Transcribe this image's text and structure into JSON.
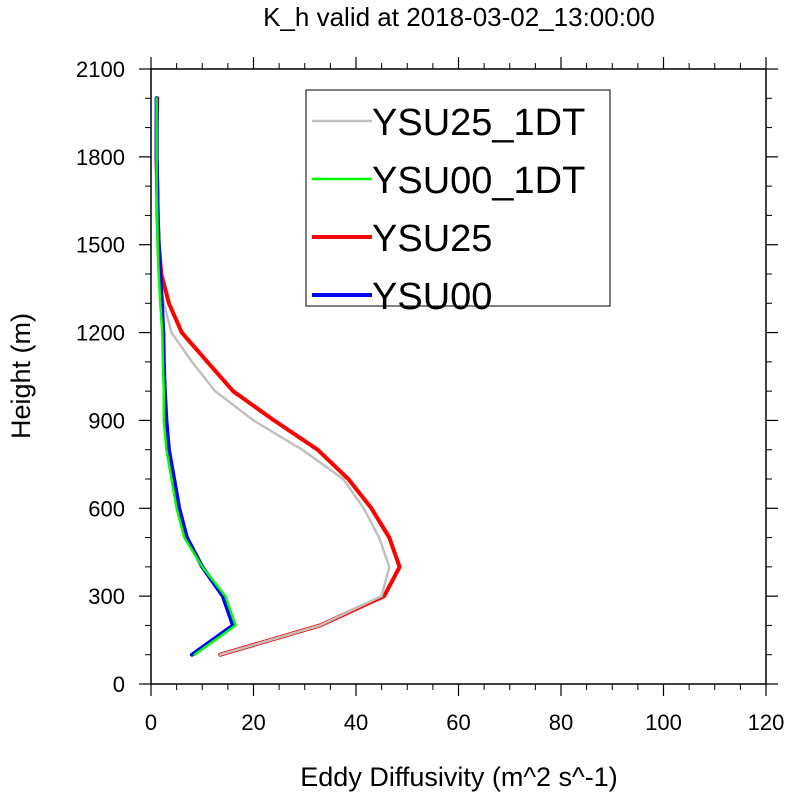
{
  "chart_data": {
    "type": "line",
    "title": "K_h valid at 2018-03-02_13:00:00",
    "xlabel": "Eddy Diffusivity (m^2 s^-1)",
    "ylabel": "Height (m)",
    "xlim": [
      0,
      120
    ],
    "ylim": [
      0,
      2100
    ],
    "xticks": [
      0,
      20,
      40,
      60,
      80,
      100,
      120
    ],
    "yticks": [
      0,
      300,
      600,
      900,
      1200,
      1500,
      1800,
      2100
    ],
    "grid": false,
    "legend_position": "top-right",
    "series": [
      {
        "name": "YSU25_1DT",
        "color": "#c0c0c0",
        "points": [
          [
            13.5,
            100
          ],
          [
            33,
            200
          ],
          [
            45,
            300
          ],
          [
            46.5,
            400
          ],
          [
            44.5,
            500
          ],
          [
            41.5,
            600
          ],
          [
            37.5,
            700
          ],
          [
            29.5,
            800
          ],
          [
            20,
            900
          ],
          [
            12.5,
            1000
          ],
          [
            8,
            1100
          ],
          [
            4,
            1200
          ],
          [
            2.5,
            1300
          ],
          [
            1.5,
            1400
          ],
          [
            1.2,
            1500
          ],
          [
            1.1,
            1600
          ],
          [
            1.1,
            1700
          ],
          [
            1.1,
            1800
          ],
          [
            1.1,
            1900
          ],
          [
            1.1,
            2000
          ]
        ]
      },
      {
        "name": "YSU00_1DT",
        "color": "#00ff00",
        "points": [
          [
            8.5,
            100
          ],
          [
            16.5,
            200
          ],
          [
            14.5,
            300
          ],
          [
            10,
            400
          ],
          [
            6.5,
            500
          ],
          [
            5,
            600
          ],
          [
            4,
            700
          ],
          [
            3,
            800
          ],
          [
            2.5,
            900
          ],
          [
            2.5,
            1000
          ],
          [
            2.3,
            1100
          ],
          [
            2.2,
            1200
          ],
          [
            1.8,
            1300
          ],
          [
            1.5,
            1400
          ],
          [
            1.3,
            1500
          ],
          [
            1.2,
            1600
          ],
          [
            1.1,
            1700
          ],
          [
            1.1,
            1800
          ],
          [
            1.1,
            1900
          ],
          [
            1.1,
            2000
          ]
        ]
      },
      {
        "name": "YSU25",
        "color": "#ff0000",
        "points": [
          [
            13.5,
            100
          ],
          [
            33,
            200
          ],
          [
            45.5,
            300
          ],
          [
            48.5,
            400
          ],
          [
            46.5,
            500
          ],
          [
            43,
            600
          ],
          [
            38.5,
            700
          ],
          [
            32.5,
            800
          ],
          [
            24,
            900
          ],
          [
            16,
            1000
          ],
          [
            11,
            1100
          ],
          [
            6,
            1200
          ],
          [
            3.5,
            1300
          ],
          [
            2,
            1400
          ],
          [
            1.5,
            1500
          ],
          [
            1.3,
            1600
          ],
          [
            1.2,
            1700
          ],
          [
            1.1,
            1800
          ],
          [
            1.1,
            1900
          ],
          [
            1.2,
            2000
          ]
        ]
      },
      {
        "name": "YSU00",
        "color": "#0000ff",
        "points": [
          [
            8,
            100
          ],
          [
            16,
            200
          ],
          [
            14,
            300
          ],
          [
            10,
            400
          ],
          [
            7,
            500
          ],
          [
            5.5,
            600
          ],
          [
            4.5,
            700
          ],
          [
            3.5,
            800
          ],
          [
            3,
            900
          ],
          [
            2.7,
            1000
          ],
          [
            2.5,
            1100
          ],
          [
            2.4,
            1200
          ],
          [
            2.1,
            1300
          ],
          [
            1.8,
            1400
          ],
          [
            1.5,
            1500
          ],
          [
            1.3,
            1600
          ],
          [
            1.2,
            1700
          ],
          [
            1.1,
            1800
          ],
          [
            1.1,
            1900
          ],
          [
            1.1,
            2000
          ]
        ]
      }
    ],
    "legend_order": [
      "YSU25_1DT",
      "YSU00_1DT",
      "YSU25",
      "YSU00"
    ]
  }
}
